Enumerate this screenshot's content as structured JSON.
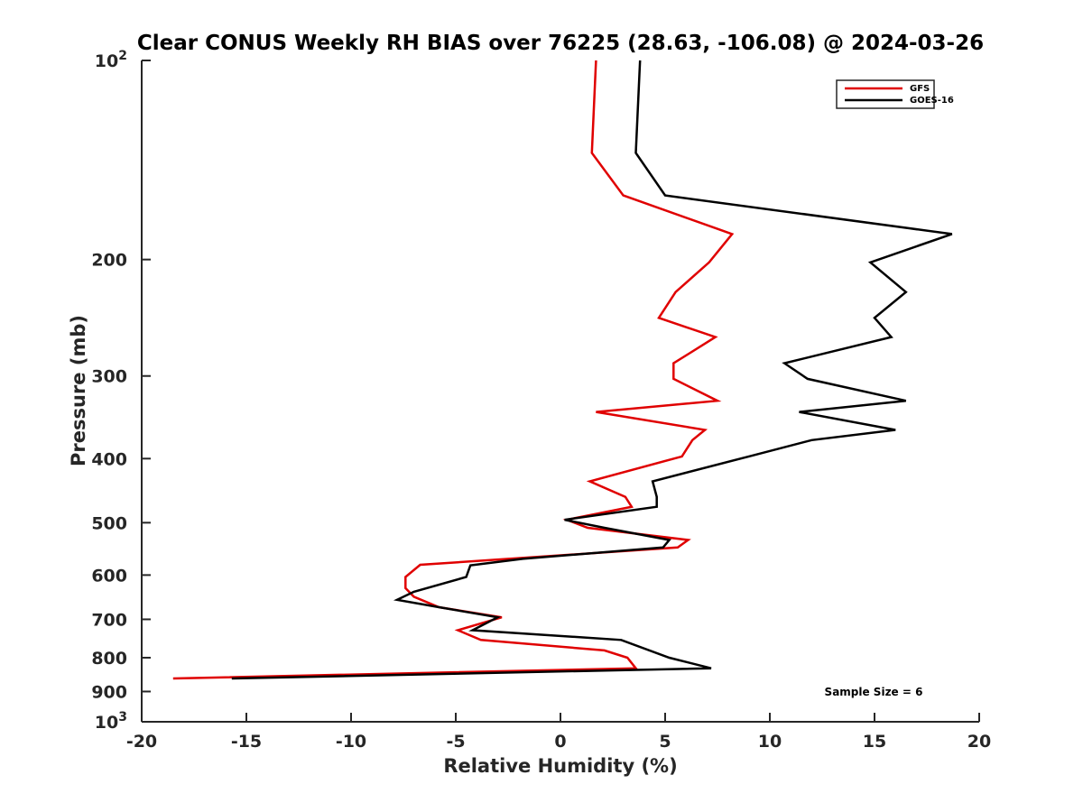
{
  "chart_data": {
    "type": "line",
    "title": "Clear CONUS Weekly RH BIAS over 76225 (28.63, -106.08) @ 2024-03-26",
    "xlabel": "Relative Humidity (%)",
    "ylabel": "Pressure (mb)",
    "xlim": [
      -20,
      20
    ],
    "ylim": [
      1000,
      100
    ],
    "y_scale": "log",
    "y_reversed": true,
    "x_ticks": [
      "-20",
      "-15",
      "-10",
      "-5",
      "0",
      "5",
      "10",
      "15",
      "20"
    ],
    "y_ticks": [
      {
        "value": 100,
        "base": "10",
        "exp": "2"
      },
      {
        "value": 200,
        "label": "200"
      },
      {
        "value": 300,
        "label": "300"
      },
      {
        "value": 400,
        "label": "400"
      },
      {
        "value": 500,
        "label": "500"
      },
      {
        "value": 600,
        "label": "600"
      },
      {
        "value": 700,
        "label": "700"
      },
      {
        "value": 800,
        "label": "800"
      },
      {
        "value": 900,
        "label": "900"
      },
      {
        "value": 1000,
        "base": "10",
        "exp": "3"
      }
    ],
    "grid": false,
    "legend_position": "top-right",
    "annotation": "Sample Size = 6",
    "series": [
      {
        "name": "GFS",
        "color": "#e00000",
        "x": [
          1.7,
          1.5,
          3.0,
          8.2,
          7.1,
          5.5,
          4.7,
          7.4,
          5.4,
          5.4,
          7.5,
          1.7,
          6.9,
          6.3,
          5.8,
          1.4,
          3.1,
          3.4,
          0.3,
          1.3,
          6.1,
          5.6,
          -6.7,
          -7.4,
          -7.4,
          -7.0,
          -5.8,
          -2.8,
          -4.9,
          -3.8,
          2.1,
          3.2,
          3.6,
          -18.5
        ],
        "y": [
          100,
          138,
          160,
          183,
          202,
          224,
          245,
          262,
          287,
          303,
          327,
          340,
          362,
          375,
          397,
          433,
          457,
          473,
          495,
          509,
          531,
          545,
          579,
          604,
          628,
          647,
          671,
          695,
          727,
          752,
          780,
          800,
          830,
          860
        ]
      },
      {
        "name": "GOES-16",
        "color": "#000000",
        "x": [
          3.8,
          3.6,
          5.0,
          18.7,
          14.8,
          16.5,
          15.0,
          15.8,
          10.7,
          11.8,
          16.5,
          11.4,
          16.0,
          12.0,
          9.0,
          4.4,
          4.6,
          4.6,
          0.2,
          2.1,
          5.2,
          4.9,
          -1.8,
          -4.3,
          -4.5,
          -7.0,
          -7.8,
          -5.8,
          -3.0,
          -4.2,
          2.9,
          5.2,
          7.2,
          -15.7
        ],
        "y": [
          100,
          138,
          160,
          183,
          202,
          224,
          245,
          262,
          287,
          303,
          327,
          340,
          362,
          375,
          397,
          433,
          457,
          473,
          495,
          509,
          531,
          545,
          567,
          580,
          604,
          636,
          654,
          671,
          695,
          727,
          752,
          800,
          830,
          860
        ]
      }
    ]
  }
}
